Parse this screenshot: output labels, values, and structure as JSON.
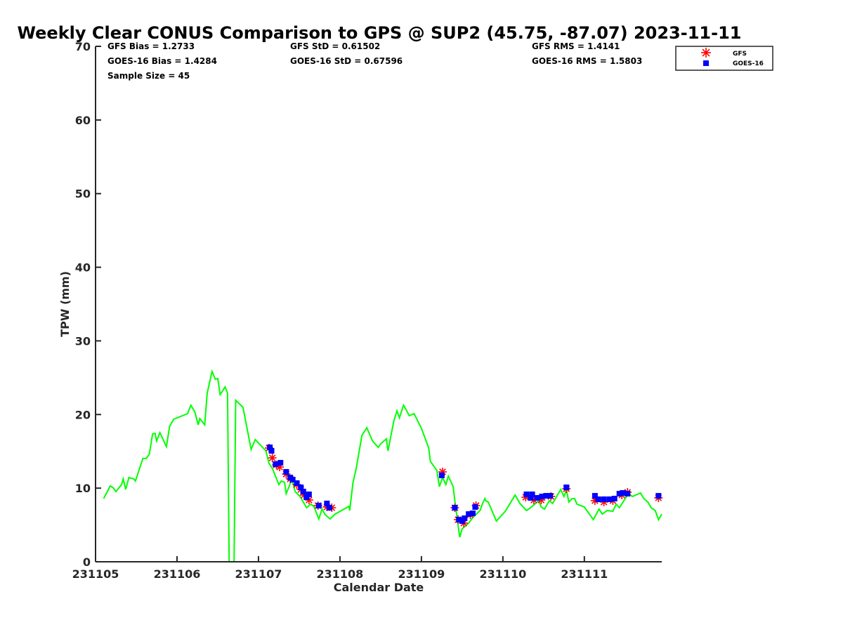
{
  "chart_data": {
    "type": "line",
    "title": "Weekly Clear CONUS Comparison to GPS @ SUP2 (45.75, -87.07) 2023-11-11",
    "xlabel": "Calendar Date",
    "ylabel": "TPW (mm)",
    "x_units": "days since 231105",
    "xlim": [
      0,
      6.95
    ],
    "ylim": [
      0,
      70
    ],
    "xticks": [
      0,
      1,
      2,
      3,
      4,
      5,
      6
    ],
    "xtick_labels": [
      "231105",
      "231106",
      "231107",
      "231108",
      "231109",
      "231110",
      "231111"
    ],
    "yticks": [
      0,
      10,
      20,
      30,
      40,
      50,
      60,
      70
    ],
    "ytick_labels": [
      "0",
      "10",
      "20",
      "30",
      "40",
      "50",
      "60",
      "70"
    ],
    "grid": false,
    "legend_placement": "top-right",
    "stats": [
      [
        "GFS Bias = 1.2733",
        "GFS StD = 0.61502",
        "GFS RMS = 1.4141"
      ],
      [
        "GOES-16 Bias = 1.4284",
        "GOES-16 StD = 0.67596",
        "GOES-16 RMS = 1.5803"
      ],
      [
        "Sample Size = 45"
      ]
    ],
    "series": [
      {
        "name": "GPS",
        "type": "line",
        "color": "#00ff00",
        "in_legend": false,
        "x": [
          0.1,
          0.18,
          0.22,
          0.25,
          0.32,
          0.34,
          0.37,
          0.41,
          0.47,
          0.49,
          0.58,
          0.62,
          0.66,
          0.7,
          0.73,
          0.75,
          0.79,
          0.87,
          0.91,
          0.96,
          1.13,
          1.17,
          1.22,
          1.26,
          1.28,
          1.34,
          1.37,
          1.43,
          1.47,
          1.5,
          1.53,
          1.59,
          1.62,
          1.64,
          1.7,
          1.72,
          1.81,
          1.91,
          1.96,
          2.09,
          2.13,
          2.17,
          2.25,
          2.28,
          2.32,
          2.34,
          2.41,
          2.45,
          2.51,
          2.59,
          2.64,
          2.68,
          2.74,
          2.78,
          2.82,
          2.88,
          2.94,
          3.11,
          3.12,
          3.16,
          3.2,
          3.27,
          3.33,
          3.4,
          3.47,
          3.5,
          3.57,
          3.59,
          3.66,
          3.7,
          3.73,
          3.78,
          3.81,
          3.85,
          3.91,
          4.0,
          4.09,
          4.11,
          4.19,
          4.22,
          4.26,
          4.3,
          4.33,
          4.39,
          4.41,
          4.47,
          4.5,
          4.58,
          4.63,
          4.72,
          4.75,
          4.78,
          4.79,
          4.82,
          4.92,
          5.03,
          5.15,
          5.21,
          5.29,
          5.34,
          5.44,
          5.47,
          5.51,
          5.57,
          5.61,
          5.71,
          5.75,
          5.78,
          5.81,
          5.85,
          5.88,
          5.91,
          6.0,
          6.11,
          6.18,
          6.22,
          6.28,
          6.35,
          6.39,
          6.43,
          6.54,
          6.59,
          6.69,
          6.73,
          6.78,
          6.82,
          6.87,
          6.91,
          6.95
        ],
        "y": [
          8.58,
          10.3,
          10.01,
          9.54,
          10.49,
          11.25,
          9.82,
          11.44,
          11.25,
          10.97,
          14.02,
          14.02,
          14.59,
          17.36,
          17.45,
          16.4,
          17.55,
          15.64,
          18.41,
          19.36,
          20.12,
          21.27,
          20.31,
          18.6,
          19.45,
          18.6,
          22.89,
          25.84,
          24.8,
          24.89,
          22.7,
          23.75,
          22.89,
          0,
          0,
          21.93,
          20.98,
          15.26,
          16.59,
          15.07,
          13.35,
          12.68,
          10.49,
          10.97,
          10.78,
          9.25,
          11.16,
          9.54,
          8.87,
          7.34,
          7.82,
          7.53,
          5.82,
          7.15,
          6.39,
          5.82,
          6.48,
          7.53,
          6.96,
          10.78,
          12.68,
          17.17,
          18.21,
          16.4,
          15.54,
          16.02,
          16.69,
          15.07,
          19.07,
          20.5,
          19.55,
          21.27,
          20.69,
          19.84,
          20.12,
          18.12,
          15.45,
          13.64,
          12.4,
          10.2,
          11.44,
          10.49,
          11.63,
          10.2,
          8.3,
          3.34,
          4.48,
          5.25,
          6.01,
          6.96,
          7.92,
          8.58,
          8.3,
          8.11,
          5.53,
          6.87,
          9.06,
          7.92,
          6.96,
          7.34,
          8.3,
          7.44,
          7.15,
          8.3,
          7.92,
          9.82,
          8.87,
          9.73,
          8.11,
          8.58,
          8.58,
          7.82,
          7.44,
          5.72,
          7.15,
          6.48,
          6.96,
          6.87,
          7.82,
          7.34,
          9.25,
          8.87,
          9.35,
          8.58,
          8.11,
          7.34,
          6.96,
          5.72,
          6.48
        ]
      },
      {
        "name": "GFS",
        "type": "scatter",
        "marker": "asterisk",
        "color": "#ff0000",
        "in_legend": true,
        "x": [
          2.13,
          2.17,
          2.22,
          2.26,
          2.34,
          2.39,
          2.47,
          2.52,
          2.56,
          2.62,
          2.73,
          2.84,
          2.9,
          4.26,
          4.41,
          4.45,
          4.52,
          4.6,
          4.67,
          5.28,
          5.38,
          5.47,
          5.59,
          5.78,
          6.13,
          6.24,
          6.35,
          6.46,
          6.53,
          6.91
        ],
        "y": [
          15.45,
          14.11,
          13.16,
          12.87,
          11.92,
          11.25,
          10.49,
          9.82,
          9.06,
          8.39,
          7.63,
          7.44,
          7.34,
          12.21,
          7.34,
          5.72,
          5.25,
          6.39,
          7.63,
          8.77,
          8.39,
          8.39,
          8.87,
          9.92,
          8.3,
          8.11,
          8.3,
          9.06,
          9.44,
          8.68
        ]
      },
      {
        "name": "GOES-16",
        "type": "scatter",
        "marker": "square",
        "color": "#0000ff",
        "in_legend": true,
        "x": [
          2.14,
          2.16,
          2.21,
          2.27,
          2.34,
          2.39,
          2.42,
          2.47,
          2.52,
          2.55,
          2.59,
          2.62,
          2.74,
          2.84,
          2.87,
          4.25,
          4.41,
          4.46,
          4.5,
          4.53,
          4.58,
          4.63,
          4.66,
          5.29,
          5.34,
          5.36,
          5.42,
          5.48,
          5.53,
          5.58,
          5.78,
          6.13,
          6.17,
          6.24,
          6.31,
          6.37,
          6.43,
          6.47,
          6.53,
          6.91
        ],
        "y": [
          15.54,
          15.07,
          13.26,
          13.45,
          12.21,
          11.44,
          11.16,
          10.68,
          10.11,
          9.54,
          8.77,
          9.16,
          7.63,
          7.92,
          7.34,
          11.73,
          7.34,
          5.72,
          5.53,
          5.91,
          6.48,
          6.58,
          7.44,
          9.16,
          8.68,
          9.16,
          8.68,
          8.87,
          8.96,
          8.96,
          10.11,
          8.96,
          8.49,
          8.49,
          8.49,
          8.58,
          9.25,
          9.35,
          9.25,
          8.96
        ]
      }
    ]
  }
}
